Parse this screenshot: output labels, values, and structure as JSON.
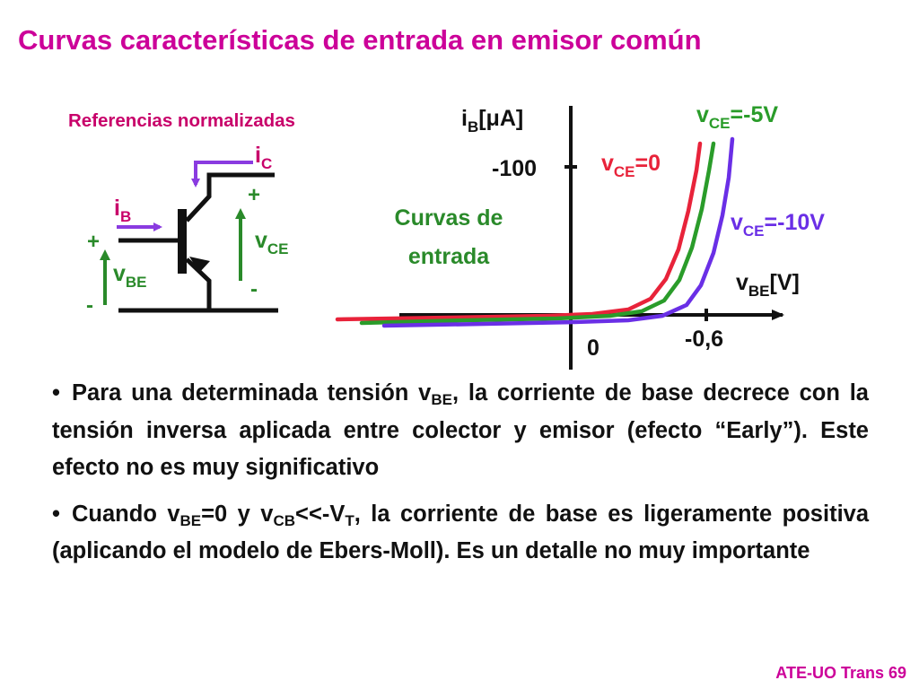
{
  "title": "Curvas características de entrada en emisor común",
  "circuit": {
    "heading": "Referencias normalizadas",
    "ib": {
      "main": "i",
      "sub": "B"
    },
    "ic": {
      "main": "i",
      "sub": "C"
    },
    "vbe": {
      "main": "v",
      "sub": "BE"
    },
    "vce": {
      "main": "v",
      "sub": "CE"
    },
    "plus": "+",
    "minus": "-"
  },
  "graph": {
    "y_axis_label": {
      "main": "i",
      "sub": "B",
      "unit": "[μA]"
    },
    "x_axis_label": {
      "main": "v",
      "sub": "BE",
      "unit": "[V]"
    },
    "y_tick": "-100",
    "x_tick": "-0,6",
    "origin": "0",
    "annotation": {
      "line1": "Curvas de",
      "line2": "entrada"
    },
    "curves": [
      {
        "label_main": "v",
        "label_sub": "CE",
        "label_value": "=0",
        "color": "#e8233a"
      },
      {
        "label_main": "v",
        "label_sub": "CE",
        "label_value": "=-5V",
        "color": "#2a9c2a"
      },
      {
        "label_main": "v",
        "label_sub": "CE",
        "label_value": "=-10V",
        "color": "#6a2fe6"
      }
    ]
  },
  "bullets": [
    {
      "symbol": "•",
      "t1": "Para una determinada tensión v",
      "s1": "BE",
      "t2": ", la corriente de base decrece con la tensión inversa aplicada entre colector y emisor (efecto “Early”). Este efecto no es muy significativo"
    },
    {
      "symbol": "•",
      "t1": "Cuando v",
      "s1": "BE",
      "t2": "=0 y v",
      "s2": "CB",
      "t3": "<<-V",
      "s3": "T",
      "t4": ", la corriente de base es ligeramente positiva (aplicando el modelo de Ebers-Moll). Es un detalle no muy importante"
    }
  ],
  "colors": {
    "title": "#cc0099",
    "circuit_label": "#c8006a",
    "current_arrow": "#8a3be0",
    "voltage_arrow": "#2a8a2a"
  },
  "footer": "ATE-UO Trans 69"
}
